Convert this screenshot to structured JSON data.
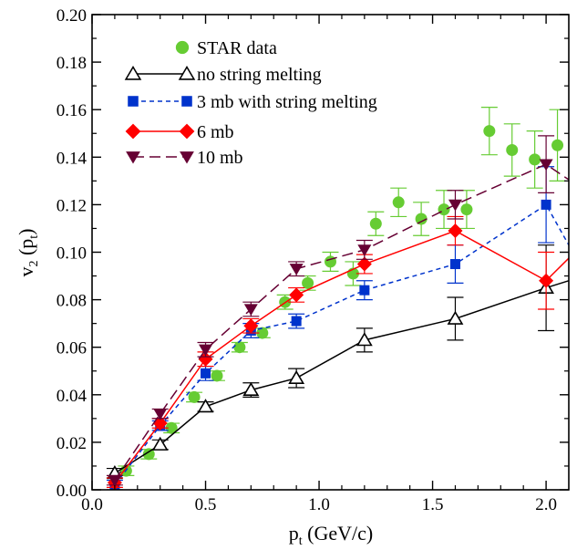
{
  "chart_data": {
    "type": "scatter",
    "title": "",
    "xlabel_main": "p",
    "xlabel_sub": "t",
    "xlabel_rest": " (GeV/c)",
    "ylabel_main": "v",
    "ylabel_sub": "2",
    "ylabel_mid": " (p",
    "ylabel_sub2": "t",
    "ylabel_end": ")",
    "xlim": [
      0.0,
      2.1
    ],
    "ylim": [
      0.0,
      0.2
    ],
    "xticks": [
      0.0,
      0.5,
      1.0,
      1.5,
      2.0
    ],
    "xtick_labels": [
      "0.0",
      "0.5",
      "1.0",
      "1.5",
      "2.0"
    ],
    "yticks": [
      0.0,
      0.02,
      0.04,
      0.06,
      0.08,
      0.1,
      0.12,
      0.14,
      0.16,
      0.18,
      0.2
    ],
    "ytick_labels": [
      "0.00",
      "0.02",
      "0.04",
      "0.06",
      "0.08",
      "0.10",
      "0.12",
      "0.14",
      "0.16",
      "0.18",
      "0.20"
    ],
    "grid": false,
    "legend_position": "top-left",
    "series": [
      {
        "name": "STAR data",
        "style": "points",
        "marker": "circle",
        "color": "#66cc33",
        "errcolor": "#66cc33",
        "x": [
          0.15,
          0.25,
          0.35,
          0.45,
          0.55,
          0.65,
          0.75,
          0.85,
          0.95,
          1.05,
          1.15,
          1.25,
          1.35,
          1.45,
          1.55,
          1.65,
          1.75,
          1.85,
          1.95,
          2.05
        ],
        "y": [
          0.008,
          0.015,
          0.026,
          0.039,
          0.048,
          0.06,
          0.066,
          0.079,
          0.087,
          0.096,
          0.091,
          0.112,
          0.121,
          0.114,
          0.118,
          0.118,
          0.151,
          0.143,
          0.139,
          0.145
        ],
        "err": [
          0.002,
          0.002,
          0.002,
          0.002,
          0.002,
          0.002,
          0.002,
          0.003,
          0.003,
          0.004,
          0.005,
          0.005,
          0.006,
          0.007,
          0.008,
          0.008,
          0.01,
          0.011,
          0.012,
          0.015
        ]
      },
      {
        "name": "no string melting",
        "style": "line-solid",
        "marker": "triangle-up",
        "color": "#000000",
        "errcolor": "#000000",
        "x": [
          0.1,
          0.3,
          0.5,
          0.7,
          0.9,
          1.2,
          1.6,
          2.0,
          2.2
        ],
        "y": [
          0.007,
          0.019,
          0.035,
          0.042,
          0.047,
          0.063,
          0.072,
          0.085,
          0.091
        ],
        "err": [
          0.002,
          0.002,
          0.002,
          0.003,
          0.004,
          0.005,
          0.009,
          0.018,
          0.02
        ]
      },
      {
        "name": "3 mb with string melting",
        "style": "line-dotted",
        "marker": "square",
        "color": "#0033cc",
        "errcolor": "#0033cc",
        "x": [
          0.1,
          0.3,
          0.5,
          0.7,
          0.9,
          1.2,
          1.6,
          2.0,
          2.2
        ],
        "y": [
          0.002,
          0.027,
          0.049,
          0.067,
          0.071,
          0.084,
          0.095,
          0.12,
          0.086
        ],
        "err": [
          0.002,
          0.002,
          0.003,
          0.003,
          0.003,
          0.004,
          0.008,
          0.016,
          0.015
        ]
      },
      {
        "name": "6 mb",
        "style": "line-solid",
        "marker": "diamond",
        "color": "#ff0000",
        "errcolor": "#ff0000",
        "x": [
          0.1,
          0.3,
          0.5,
          0.7,
          0.9,
          1.2,
          1.6,
          2.0,
          2.2
        ],
        "y": [
          0.003,
          0.028,
          0.055,
          0.069,
          0.082,
          0.095,
          0.109,
          0.088,
          0.107
        ],
        "err": [
          0.002,
          0.002,
          0.003,
          0.003,
          0.003,
          0.004,
          0.006,
          0.012,
          0.015
        ]
      },
      {
        "name": "10 mb",
        "style": "line-dashed",
        "marker": "triangle-down",
        "color": "#660033",
        "errcolor": "#660033",
        "x": [
          0.1,
          0.3,
          0.5,
          0.7,
          0.9,
          1.2,
          1.6,
          2.0,
          2.2
        ],
        "y": [
          0.004,
          0.032,
          0.059,
          0.076,
          0.093,
          0.101,
          0.12,
          0.137,
          0.124
        ],
        "err": [
          0.002,
          0.002,
          0.003,
          0.003,
          0.003,
          0.004,
          0.006,
          0.012,
          0.015
        ]
      }
    ]
  }
}
